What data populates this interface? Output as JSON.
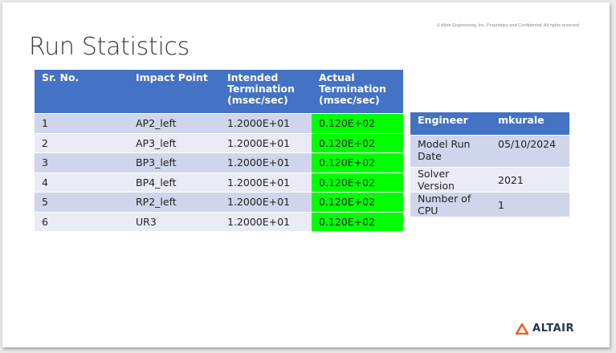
{
  "slide": {
    "confidential_note": "© Altair Engineering, Inc. Proprietary and Confidential. All rights reserved",
    "title": "Run Statistics",
    "logo_text": "ALTAIR",
    "colors": {
      "header_blue": "#4472c4",
      "highlight_green": "#00ff00",
      "logo_orange": "#f15a22"
    }
  },
  "run_table": {
    "headers": [
      "Sr. No.",
      "Impact Point",
      "Intended Termination (msec/sec)",
      "Actual Termination (msec/sec)"
    ],
    "rows": [
      [
        "1",
        "AP2_left",
        "1.2000E+01",
        "0.120E+02"
      ],
      [
        "2",
        "AP3_left",
        "1.2000E+01",
        "0.120E+02"
      ],
      [
        "3",
        "BP3_left",
        "1.2000E+01",
        "0.120E+02"
      ],
      [
        "4",
        "BP4_left",
        "1.2000E+01",
        "0.120E+02"
      ],
      [
        "5",
        "RP2_left",
        "1.2000E+01",
        "0.120E+02"
      ],
      [
        "6",
        "UR3",
        "1.2000E+01",
        "0.120E+02"
      ]
    ]
  },
  "info_table": {
    "headers": [
      "Engineer",
      "mkurale"
    ],
    "rows": [
      [
        "Model Run Date",
        "05/10/2024"
      ],
      [
        "Solver Version",
        "2021"
      ],
      [
        "Number of CPU",
        "1"
      ]
    ]
  }
}
